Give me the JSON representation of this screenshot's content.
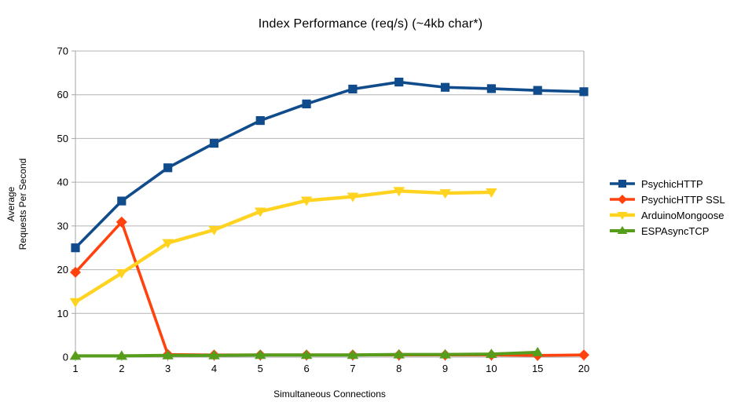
{
  "chart_data": {
    "type": "line",
    "title": "Index Performance (req/s) (~4kb char*)",
    "xlabel": "Simultaneous Connections",
    "ylabel": "Average Requests Per Second",
    "ylabel_line1": "Average",
    "ylabel_line2": "Requests Per Second",
    "categories": [
      "1",
      "2",
      "3",
      "4",
      "5",
      "6",
      "7",
      "8",
      "9",
      "10",
      "15",
      "20"
    ],
    "ylim": [
      0,
      70
    ],
    "yticks": [
      0,
      10,
      20,
      30,
      40,
      50,
      60,
      70
    ],
    "grid": "horizontal",
    "legend_position": "right",
    "grid_color": "#b4b4b4",
    "axis_color": "#a6a6a6",
    "text_color": "#000000",
    "series": [
      {
        "name": "PsychicHTTP",
        "color": "#104C8C",
        "marker": "square",
        "line_width": 3.6,
        "values": [
          25.0,
          35.7,
          43.3,
          48.9,
          54.1,
          57.9,
          61.3,
          62.9,
          61.7,
          61.4,
          61.0,
          60.7
        ]
      },
      {
        "name": "PsychicHTTP SSL",
        "color": "#FF420E",
        "marker": "diamond",
        "line_width": 3.6,
        "values": [
          19.4,
          30.9,
          0.6,
          0.5,
          0.5,
          0.5,
          0.5,
          0.5,
          0.5,
          0.5,
          0.4,
          0.5
        ]
      },
      {
        "name": "ArduinoMongoose",
        "color": "#FFD320",
        "marker": "triangle-down",
        "line_width": 4.4,
        "values": [
          12.6,
          19.2,
          26.1,
          29.1,
          33.3,
          35.8,
          36.7,
          38.0,
          37.5,
          37.7,
          null,
          null
        ]
      },
      {
        "name": "ESPAsyncTCP",
        "color": "#579D1C",
        "marker": "triangle-up",
        "line_width": 4.0,
        "values": [
          0.3,
          0.3,
          0.4,
          0.4,
          0.5,
          0.5,
          0.5,
          0.6,
          0.6,
          0.7,
          1.1,
          null
        ]
      }
    ]
  }
}
